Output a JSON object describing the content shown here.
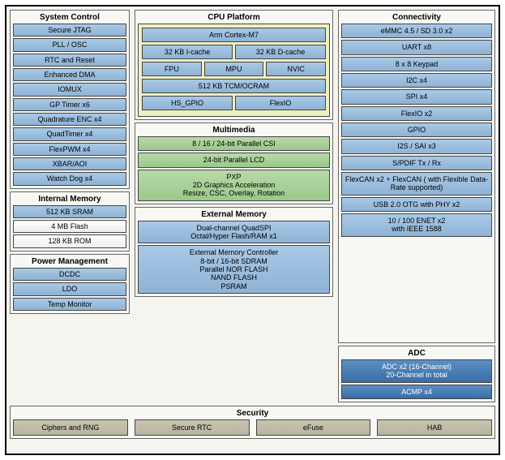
{
  "system_control": {
    "title": "System Control",
    "items": [
      "Secure JTAG",
      "PLL / OSC",
      "RTC and Reset",
      "Enhanced DMA",
      "IOMUX",
      "GP Timer x6",
      "Quadrature ENC x4",
      "QuadTimer x4",
      "FlexPWM x4",
      "XBAR/AOI",
      "Watch Dog x4"
    ]
  },
  "internal_memory": {
    "title": "Internal Memory",
    "items": [
      "512 KB SRAM",
      "4 MB Flash",
      "128 KB ROM"
    ]
  },
  "power": {
    "title": "Power Management",
    "items": [
      "DCDC",
      "LDO",
      "Temp Monitor"
    ]
  },
  "cpu": {
    "title": "CPU Platform",
    "core": "Arm Cortex-M7",
    "icache": "32 KB I-cache",
    "dcache": "32 KB D-cache",
    "fpu": "FPU",
    "mpu": "MPU",
    "nvic": "NVIC",
    "tcm": "512 KB TCM/OCRAM",
    "hsgpio": "HS_GPIO",
    "flexio": "FlexIO"
  },
  "multimedia": {
    "title": "Multimedia",
    "csi": "8 / 16 / 24-bit Parallel CSI",
    "lcd": "24-bit Parallel LCD",
    "pxp": "PXP\n2D Graphics Acceleration\nResize, CSC, Overlay, Rotation"
  },
  "ext_mem": {
    "title": "External Memory",
    "quadspi": "Dual-channel QuadSPI\nOctal/Hyper Flash/RAM x1",
    "emc": "External Memory Controller\n8-bit / 16-bit SDRAM\nParallel NOR FLASH\nNAND FLASH\nPSRAM"
  },
  "connectivity": {
    "title": "Connectivity",
    "items": [
      "eMMC 4.5 / SD 3.0 x2",
      "UART x8",
      "8 x 8 Keypad",
      "I2C x4",
      "SPI x4",
      "FlexIO x2",
      "GPIO",
      "I2S / SAI x3",
      "S/PDIF Tx / Rx",
      "FlexCAN x2  + FlexCAN ( with Flexible Data-Rate supported)",
      "USB 2.0 OTG with PHY x2",
      "10 / 100 ENET x2\nwith IEEE 1588"
    ]
  },
  "adc": {
    "title": "ADC",
    "a": "ADC x2 (16-Channel)\n20-Channel in total",
    "b": "ACMP x4"
  },
  "security": {
    "title": "Security",
    "items": [
      "Ciphers and RNG",
      "Secure RTC",
      "eFuse",
      "HAB"
    ]
  }
}
